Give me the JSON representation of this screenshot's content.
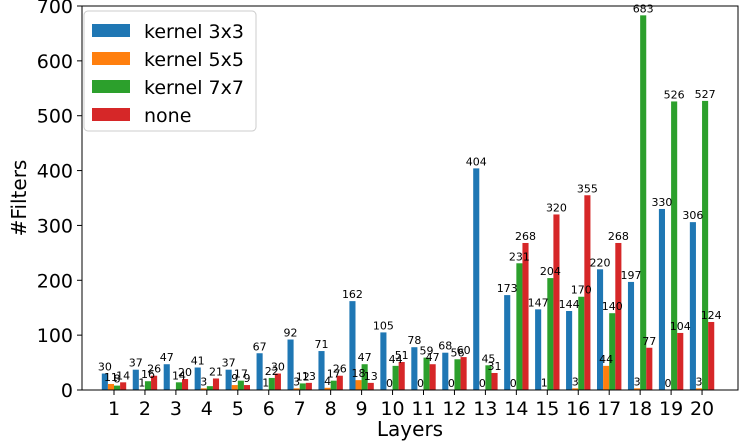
{
  "chart_data": {
    "type": "bar",
    "xlabel": "Layers",
    "ylabel": "#Filters",
    "ylim": [
      0,
      700
    ],
    "yticks": [
      0,
      100,
      200,
      300,
      400,
      500,
      600,
      700
    ],
    "categories": [
      "1",
      "2",
      "3",
      "4",
      "5",
      "6",
      "7",
      "8",
      "9",
      "10",
      "11",
      "12",
      "13",
      "14",
      "15",
      "16",
      "17",
      "18",
      "19",
      "20"
    ],
    "legend_position": "top-left",
    "series": [
      {
        "name": "kernel 3x3",
        "color": "#1f77b4",
        "values": [
          30,
          37,
          47,
          41,
          37,
          67,
          92,
          71,
          162,
          105,
          78,
          68,
          404,
          173,
          147,
          144,
          220,
          197,
          330,
          306
        ]
      },
      {
        "name": "kernel 5x5",
        "color": "#ff7f0e",
        "values": [
          11,
          1,
          0,
          3,
          9,
          1,
          3,
          4,
          18,
          0,
          0,
          0,
          0,
          0,
          1,
          3,
          44,
          3,
          0,
          3
        ]
      },
      {
        "name": "kernel 7x7",
        "color": "#2ca02c",
        "values": [
          8,
          16,
          14,
          7,
          17,
          22,
          12,
          17,
          47,
          44,
          59,
          56,
          45,
          231,
          204,
          170,
          140,
          683,
          526,
          527
        ]
      },
      {
        "name": "none",
        "color": "#d62728",
        "values": [
          14,
          26,
          20,
          21,
          9,
          30,
          13,
          26,
          13,
          51,
          47,
          60,
          31,
          268,
          320,
          355,
          268,
          77,
          104,
          124
        ]
      }
    ],
    "bar_labels": [
      [
        "30",
        "37",
        "47",
        "41",
        "37",
        "67",
        "92",
        "71",
        "162",
        "105",
        "78",
        "68",
        "404",
        "173",
        "147",
        "144",
        "220",
        "197",
        "330",
        "306"
      ],
      [
        "11",
        "1",
        "",
        "3",
        "9",
        "1",
        "3",
        "4",
        "18",
        "0",
        "0",
        "0",
        "0",
        "0",
        "1",
        "3",
        "44",
        "3",
        "0",
        "3"
      ],
      [
        "8",
        "16",
        "14",
        "",
        "17",
        "22",
        "12",
        "17",
        "47",
        "44",
        "59",
        "56",
        "45",
        "231",
        "204",
        "170",
        "140",
        "683",
        "526",
        "527"
      ],
      [
        "14",
        "26",
        "20",
        "21",
        "9",
        "30",
        "13",
        "26",
        "13",
        "51",
        "47",
        "60",
        "31",
        "268",
        "320",
        "355",
        "268",
        "77",
        "104",
        "124"
      ]
    ]
  }
}
